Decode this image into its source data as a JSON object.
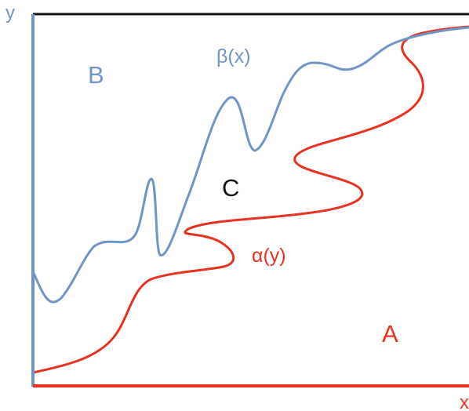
{
  "axes": {
    "x_label": "x",
    "y_label": "y"
  },
  "curves": {
    "beta": {
      "label": "β(x)"
    },
    "alpha": {
      "label": "α(y)"
    }
  },
  "regions": {
    "a": "A",
    "b": "B",
    "c": "C"
  },
  "colors": {
    "blue": "#6f95c7",
    "red": "#e8311f",
    "black": "#111111"
  }
}
